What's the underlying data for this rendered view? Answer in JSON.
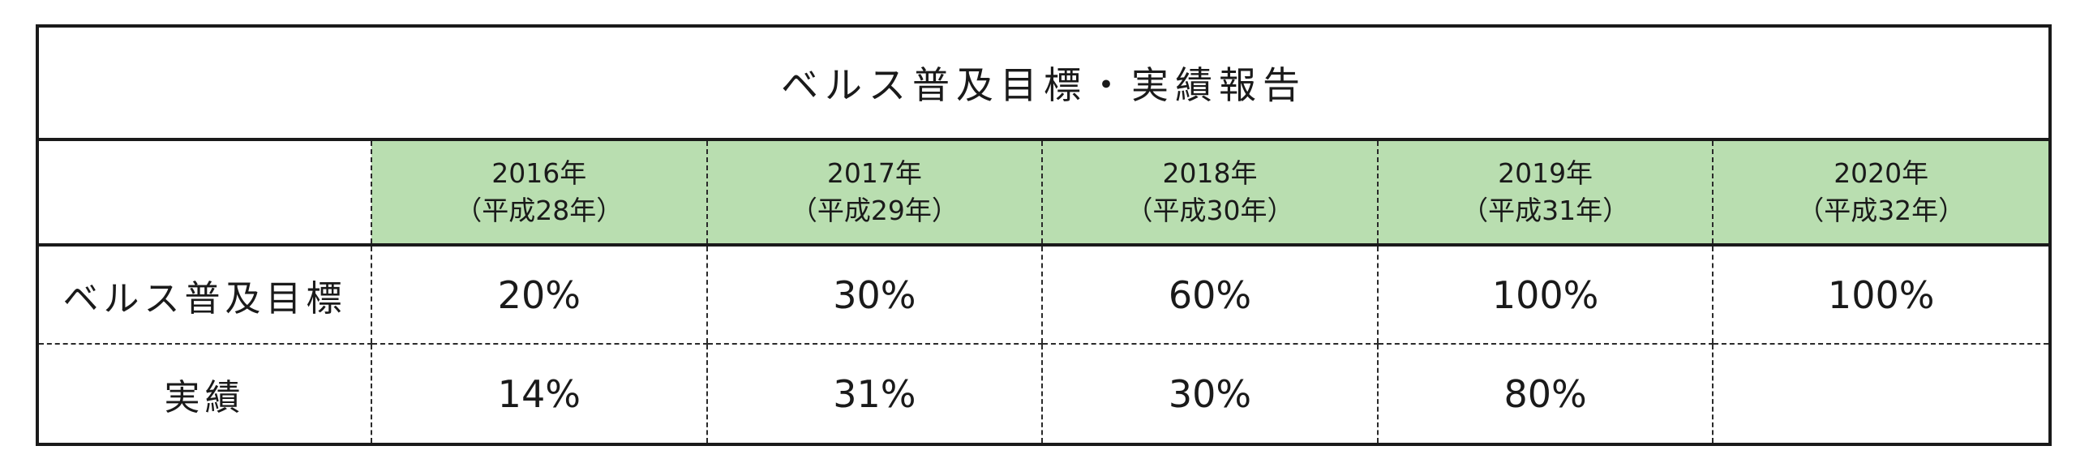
{
  "title": "ベルス普及目標・実績報告",
  "years": [
    {
      "year": "2016年",
      "era": "（平成28年）"
    },
    {
      "year": "2017年",
      "era": "（平成29年）"
    },
    {
      "year": "2018年",
      "era": "（平成30年）"
    },
    {
      "year": "2019年",
      "era": "（平成31年）"
    },
    {
      "year": "2020年",
      "era": "（平成32年）"
    }
  ],
  "rows": [
    {
      "label": "ベルス普及目標",
      "values": [
        "20%",
        "30%",
        "60%",
        "100%",
        "100%"
      ]
    },
    {
      "label": "実績",
      "values": [
        "14%",
        "31%",
        "30%",
        "80%",
        ""
      ]
    }
  ],
  "colors": {
    "header_fill": "#b9deb0",
    "border": "#1a1a1a"
  }
}
